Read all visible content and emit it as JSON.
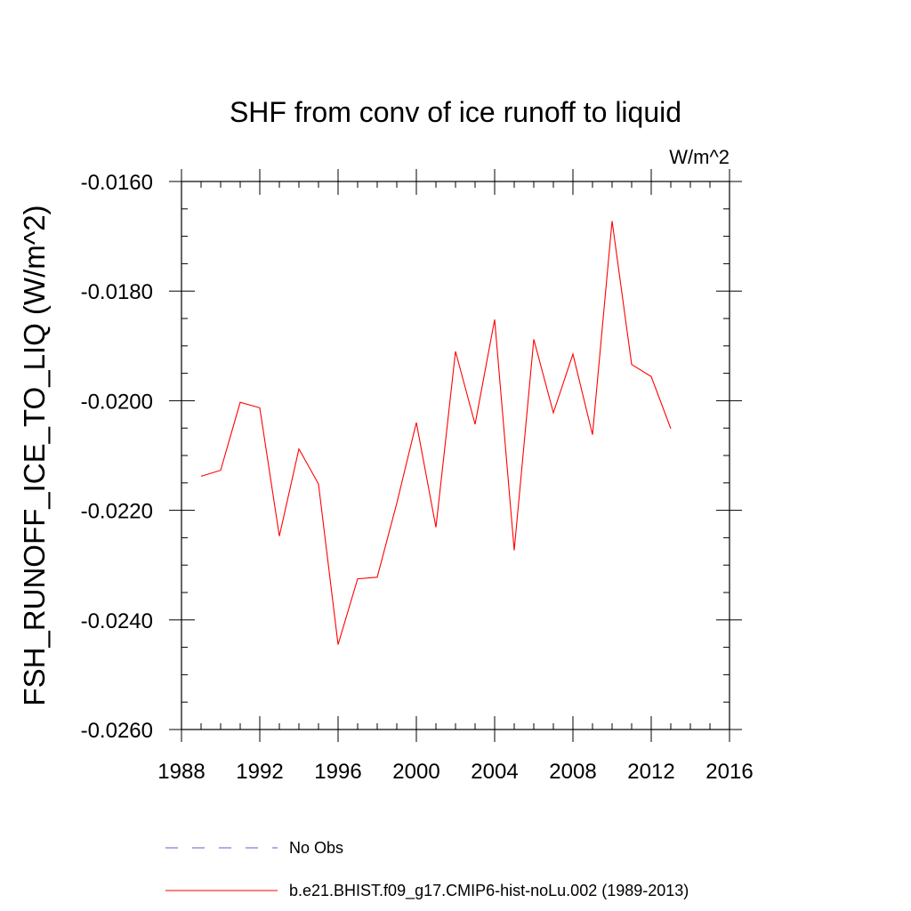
{
  "chart_data": {
    "type": "line",
    "title": "SHF from conv of ice runoff to liquid",
    "units_label": "W/m^2",
    "xlabel": "",
    "ylabel": "FSH_RUNOFF_ICE_TO_LIQ  (W/m^2)",
    "xlim": [
      1988,
      2016
    ],
    "ylim": [
      -0.026,
      -0.016
    ],
    "x_ticks": [
      "1988",
      "1992",
      "1996",
      "2000",
      "2004",
      "2008",
      "2012",
      "2016"
    ],
    "y_ticks": [
      "-0.0160",
      "-0.0180",
      "-0.0200",
      "-0.0220",
      "-0.0240",
      "-0.0260"
    ],
    "grid": false,
    "legend_position": "bottom",
    "series": [
      {
        "name": "b.e21.BHIST.f09_g17.CMIP6-hist-noLu.002 (1989-2013)",
        "color": "#ff0000",
        "style": "solid",
        "x": [
          1989,
          1990,
          1991,
          1992,
          1993,
          1994,
          1995,
          1996,
          1997,
          1998,
          1999,
          2000,
          2001,
          2002,
          2003,
          2004,
          2005,
          2006,
          2007,
          2008,
          2009,
          2010,
          2011,
          2012,
          2013
        ],
        "values": [
          -0.02138,
          -0.02127,
          -0.02003,
          -0.02013,
          -0.02247,
          -0.02088,
          -0.02152,
          -0.02445,
          -0.02325,
          -0.02322,
          -0.02187,
          -0.0204,
          -0.02231,
          -0.0191,
          -0.02043,
          -0.01852,
          -0.02273,
          -0.01888,
          -0.02022,
          -0.01915,
          -0.02062,
          -0.01672,
          -0.01934,
          -0.01956,
          -0.02051
        ]
      }
    ],
    "legend": [
      {
        "label": "No Obs",
        "color": "#6a5acd",
        "style": "dashed"
      },
      {
        "label": "b.e21.BHIST.f09_g17.CMIP6-hist-noLu.002 (1989-2013)",
        "color": "#ff0000",
        "style": "solid"
      }
    ]
  }
}
